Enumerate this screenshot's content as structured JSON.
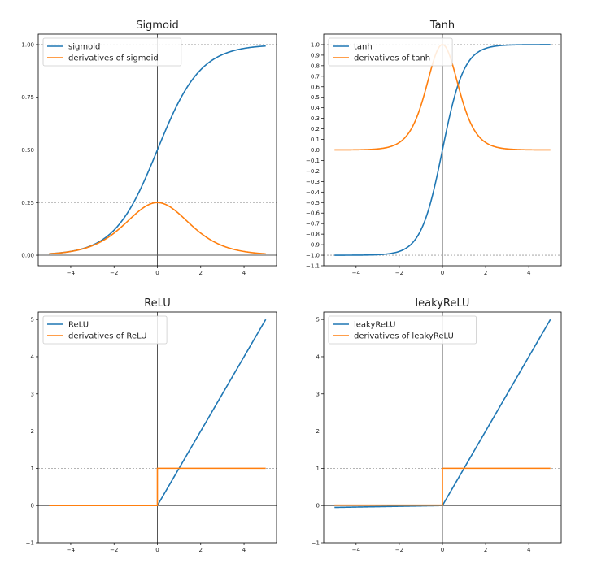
{
  "chart_data": [
    {
      "type": "line",
      "title": "Sigmoid",
      "func": "sigmoid",
      "x_domain": [
        -5,
        5
      ],
      "xlim": [
        -5.5,
        5.5
      ],
      "ylim": [
        -0.05,
        1.05
      ],
      "xticks": [
        -4,
        -2,
        0,
        2,
        4
      ],
      "xtick_labels": [
        "−4",
        "−2",
        "0",
        "2",
        "4"
      ],
      "yticks": [
        0.0,
        0.25,
        0.5,
        0.75,
        1.0
      ],
      "ytick_labels": [
        "0.00",
        "0.25",
        "0.50",
        "0.75",
        "1.00"
      ],
      "hlines_dashed": [
        0.25,
        0.5,
        1.0
      ],
      "hline_solid": 0,
      "vline_solid": 0,
      "legend_loc": "top-left",
      "series": [
        {
          "name": "sigmoid",
          "color": "#1f77b4",
          "expr": "1/(1+exp(-x))"
        },
        {
          "name": "derivatives of sigmoid",
          "color": "#ff7f0e",
          "expr": "s(x)(1-s(x))"
        }
      ]
    },
    {
      "type": "line",
      "title": "Tanh",
      "func": "tanh",
      "x_domain": [
        -5,
        5
      ],
      "xlim": [
        -5.5,
        5.5
      ],
      "ylim": [
        -1.1,
        1.1
      ],
      "xticks": [
        -4,
        -2,
        0,
        2,
        4
      ],
      "xtick_labels": [
        "−4",
        "−2",
        "0",
        "2",
        "4"
      ],
      "yticks": [
        -1.1,
        -1.0,
        -0.9,
        -0.8,
        -0.7,
        -0.6,
        -0.5,
        -0.4,
        -0.3,
        -0.2,
        -0.1,
        0.0,
        0.1,
        0.2,
        0.3,
        0.4,
        0.5,
        0.6,
        0.7,
        0.8,
        0.9,
        1.0
      ],
      "ytick_labels": [
        "−1.1",
        "−1.0",
        "−0.9",
        "−0.8",
        "−0.7",
        "−0.6",
        "−0.5",
        "−0.4",
        "−0.3",
        "−0.2",
        "−0.1",
        "0.0",
        "0.1",
        "0.2",
        "0.3",
        "0.4",
        "0.5",
        "0.6",
        "0.7",
        "0.8",
        "0.9",
        "1.0"
      ],
      "hlines_dashed": [
        -1.0,
        1.0
      ],
      "hline_solid": 0,
      "vline_solid": 0,
      "legend_loc": "top-left",
      "series": [
        {
          "name": "tanh",
          "color": "#1f77b4",
          "expr": "tanh(x)"
        },
        {
          "name": "derivatives of tanh",
          "color": "#ff7f0e",
          "expr": "1-tanh(x)^2"
        }
      ]
    },
    {
      "type": "line",
      "title": "ReLU",
      "func": "relu",
      "x_domain": [
        -5,
        5
      ],
      "xlim": [
        -5.5,
        5.5
      ],
      "ylim": [
        -1,
        5.2
      ],
      "xticks": [
        -4,
        -2,
        0,
        2,
        4
      ],
      "xtick_labels": [
        "−4",
        "−2",
        "0",
        "2",
        "4"
      ],
      "yticks": [
        -1,
        0,
        1,
        2,
        3,
        4,
        5
      ],
      "ytick_labels": [
        "−1",
        "0",
        "1",
        "2",
        "3",
        "4",
        "5"
      ],
      "hlines_dashed": [
        1
      ],
      "hline_solid": 0,
      "vline_solid": 0,
      "legend_loc": "top-left",
      "series": [
        {
          "name": "ReLU",
          "color": "#1f77b4",
          "expr": "max(0,x)"
        },
        {
          "name": "derivatives of ReLU",
          "color": "#ff7f0e",
          "expr": "x>0 ? 1 : 0"
        }
      ]
    },
    {
      "type": "line",
      "title": "leakyReLU",
      "func": "leakyrelu",
      "leak": 0.01,
      "x_domain": [
        -5,
        5
      ],
      "xlim": [
        -5.5,
        5.5
      ],
      "ylim": [
        -1,
        5.2
      ],
      "xticks": [
        -4,
        -2,
        0,
        2,
        4
      ],
      "xtick_labels": [
        "−4",
        "−2",
        "0",
        "2",
        "4"
      ],
      "yticks": [
        -1,
        0,
        1,
        2,
        3,
        4,
        5
      ],
      "ytick_labels": [
        "−1",
        "0",
        "1",
        "2",
        "3",
        "4",
        "5"
      ],
      "hlines_dashed": [
        1
      ],
      "hline_solid": 0,
      "vline_solid": 0,
      "legend_loc": "top-left",
      "series": [
        {
          "name": "leakyReLU",
          "color": "#1f77b4",
          "expr": "x>0 ? x : 0.01x"
        },
        {
          "name": "derivatives of leakyReLU",
          "color": "#ff7f0e",
          "expr": "x>0 ? 1 : 0.01"
        }
      ]
    }
  ]
}
